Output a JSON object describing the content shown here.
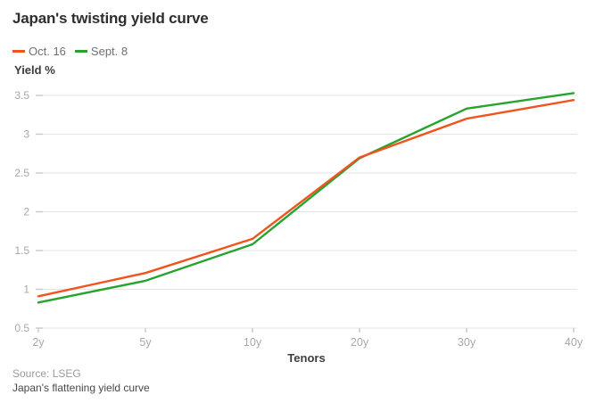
{
  "header": {
    "title": "Japan's twisting yield curve"
  },
  "chart_data": {
    "type": "line",
    "title": "Japan's twisting yield curve",
    "categories": [
      "2y",
      "5y",
      "10y",
      "20y",
      "30y",
      "40y"
    ],
    "series": [
      {
        "name": "Oct. 16",
        "color": "#f0541e",
        "values": [
          0.91,
          1.21,
          1.65,
          2.7,
          3.2,
          3.44
        ]
      },
      {
        "name": "Sept. 8",
        "color": "#28a42e",
        "values": [
          0.83,
          1.11,
          1.58,
          2.69,
          3.33,
          3.53
        ]
      }
    ],
    "xlabel": "Tenors",
    "ylabel": "Yield %",
    "ylim": [
      0.5,
      3.5
    ],
    "yticks": [
      0.5,
      1,
      1.5,
      2,
      2.5,
      3,
      3.5
    ],
    "ytick_labels": [
      "0.5",
      "1",
      "1.5",
      "2",
      "2.5",
      "3",
      "3.5"
    ],
    "grid": true,
    "legend_position": "top-left",
    "colors": {
      "gridline": "#e3e3e3",
      "tick": "#c9c9c9",
      "tick_label": "#a8a8a8"
    }
  },
  "footer": {
    "source": "Source: LSEG",
    "caption": "Japan's flattening yield curve"
  }
}
